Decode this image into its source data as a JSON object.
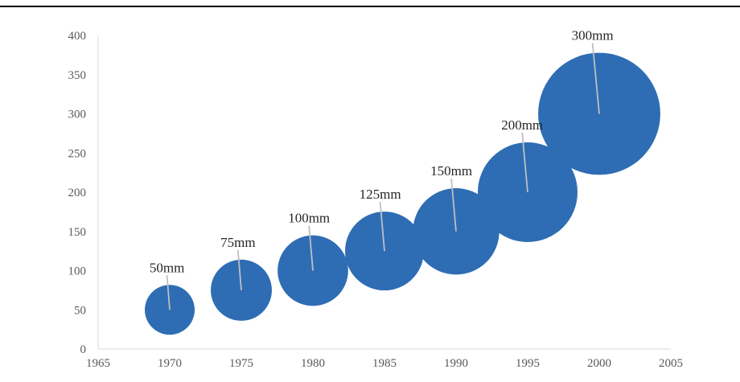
{
  "chart_data": {
    "type": "bubble",
    "title": "",
    "xlabel": "",
    "ylabel": "",
    "xlim": [
      1965,
      2005
    ],
    "ylim": [
      0,
      400
    ],
    "x_ticks": [
      1965,
      1970,
      1975,
      1980,
      1985,
      1990,
      1995,
      2000,
      2005
    ],
    "y_ticks": [
      0,
      50,
      100,
      150,
      200,
      250,
      300,
      350,
      400
    ],
    "grid": false,
    "legend": "none",
    "bubble_color": "#2E6DB4",
    "leader_color": "#BFBFBF",
    "points": [
      {
        "x": 1970,
        "y": 50,
        "size": 50,
        "label": "50mm"
      },
      {
        "x": 1975,
        "y": 75,
        "size": 75,
        "label": "75mm"
      },
      {
        "x": 1980,
        "y": 100,
        "size": 100,
        "label": "100mm"
      },
      {
        "x": 1985,
        "y": 125,
        "size": 125,
        "label": "125mm"
      },
      {
        "x": 1990,
        "y": 150,
        "size": 150,
        "label": "150mm"
      },
      {
        "x": 1995,
        "y": 200,
        "size": 200,
        "label": "200mm"
      },
      {
        "x": 2000,
        "y": 300,
        "size": 300,
        "label": "300mm"
      }
    ]
  }
}
